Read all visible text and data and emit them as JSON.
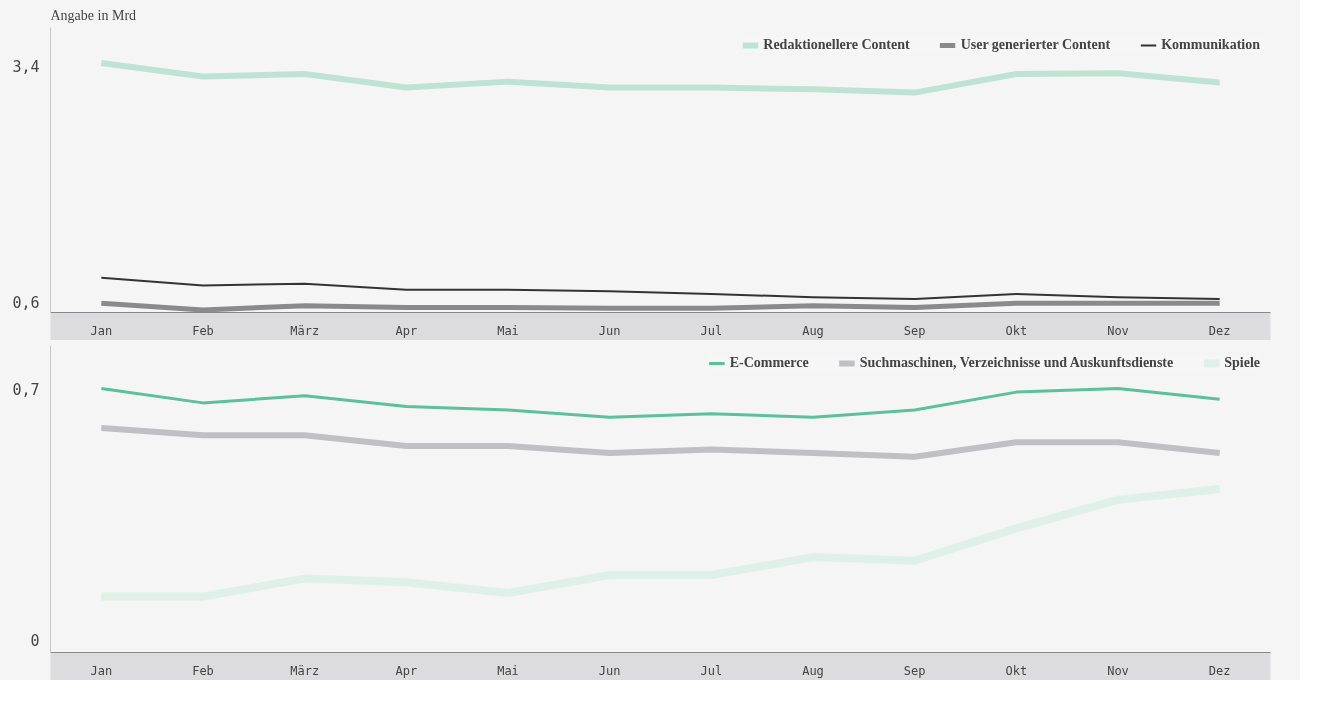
{
  "chart_data": [
    {
      "type": "line",
      "ylabel": "Angabe in Mrd",
      "categories": [
        "Jan",
        "Feb",
        "März",
        "Apr",
        "Mai",
        "Jun",
        "Jul",
        "Aug",
        "Sep",
        "Okt",
        "Nov",
        "Dez"
      ],
      "ylim": [
        0.48,
        3.85
      ],
      "yticks": [
        {
          "value": 0.6,
          "label": "0,6"
        },
        {
          "value": 3.4,
          "label": "3,4"
        }
      ],
      "grid": false,
      "legend": "top right",
      "series": [
        {
          "name": "Redaktionellere Content",
          "color": "#bfe3d3",
          "values": [
            3.43,
            3.27,
            3.3,
            3.14,
            3.21,
            3.14,
            3.14,
            3.12,
            3.08,
            3.3,
            3.31,
            3.2
          ]
        },
        {
          "name": "User generierter Content",
          "color": "#8a8a8c",
          "values": [
            0.59,
            0.51,
            0.56,
            0.54,
            0.54,
            0.53,
            0.53,
            0.56,
            0.54,
            0.59,
            0.59,
            0.59
          ]
        },
        {
          "name": "Kommunikation",
          "color": "#333333",
          "values": [
            0.89,
            0.8,
            0.82,
            0.75,
            0.75,
            0.73,
            0.7,
            0.66,
            0.64,
            0.7,
            0.66,
            0.64
          ]
        }
      ]
    },
    {
      "type": "line",
      "categories": [
        "Jan",
        "Feb",
        "März",
        "Apr",
        "Mai",
        "Jun",
        "Jul",
        "Aug",
        "Sep",
        "Okt",
        "Nov",
        "Dez"
      ],
      "ylim": [
        -0.036,
        0.82
      ],
      "yticks": [
        {
          "value": 0,
          "label": "0"
        },
        {
          "value": 0.7,
          "label": "0,7"
        }
      ],
      "grid": false,
      "legend": "top right",
      "series": [
        {
          "name": "E-Commerce",
          "color": "#5cc09a",
          "values": [
            0.7,
            0.66,
            0.68,
            0.65,
            0.64,
            0.62,
            0.63,
            0.62,
            0.64,
            0.69,
            0.7,
            0.67
          ]
        },
        {
          "name": "Suchmaschinen, Verzeichnisse und Auskunftsdienste",
          "color": "#c0bfc4",
          "values": [
            0.59,
            0.57,
            0.57,
            0.54,
            0.54,
            0.52,
            0.53,
            0.52,
            0.51,
            0.55,
            0.55,
            0.52
          ]
        },
        {
          "name": "Spiele",
          "color": "#dff0e6",
          "values": [
            0.12,
            0.12,
            0.17,
            0.16,
            0.13,
            0.18,
            0.18,
            0.23,
            0.22,
            0.31,
            0.39,
            0.42
          ]
        }
      ]
    }
  ]
}
